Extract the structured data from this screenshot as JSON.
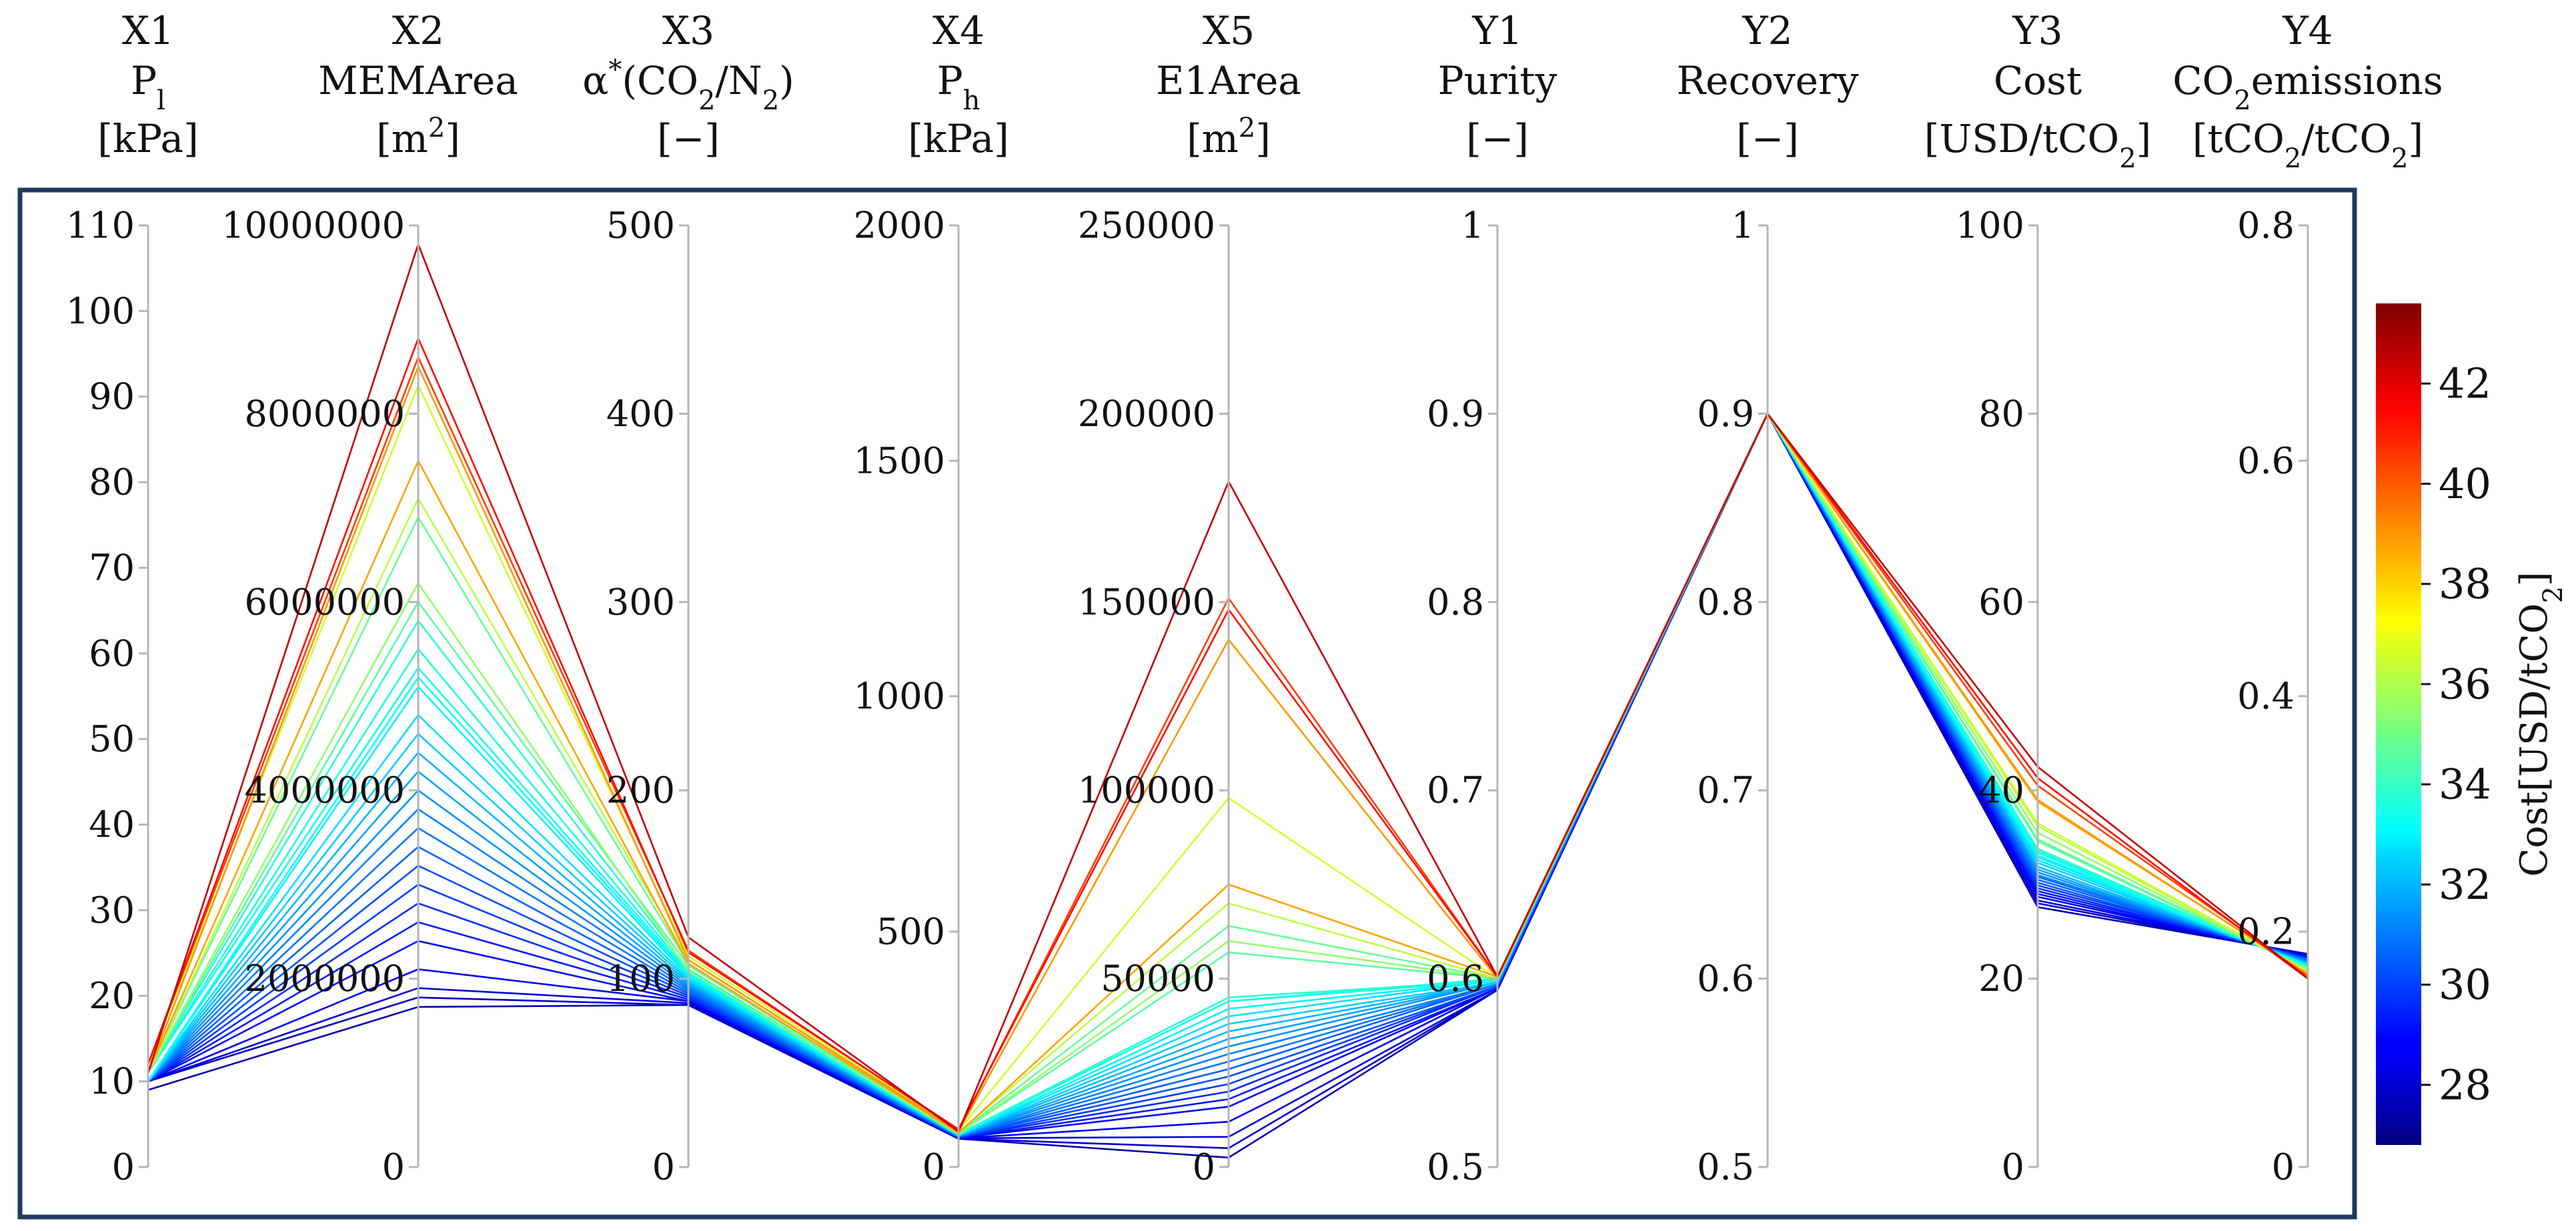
{
  "chart_data": {
    "type": "parallel_coordinates",
    "axes": [
      {
        "id": "X1",
        "name": "P_l",
        "unit": "[kPa]",
        "range": [
          0,
          110
        ],
        "ticks": [
          0,
          10,
          20,
          30,
          40,
          50,
          60,
          70,
          80,
          90,
          100,
          110
        ],
        "tick_labels": [
          "0",
          "10",
          "20",
          "30",
          "40",
          "50",
          "60",
          "70",
          "80",
          "90",
          "100",
          "110"
        ]
      },
      {
        "id": "X2",
        "name": "MEMArea",
        "unit": "[m2]",
        "range": [
          0,
          10000000
        ],
        "ticks": [
          0,
          2000000,
          4000000,
          6000000,
          8000000,
          10000000
        ],
        "tick_labels": [
          "0",
          "2000000",
          "4000000",
          "6000000",
          "8000000",
          "10000000"
        ]
      },
      {
        "id": "X3",
        "name": "α*(CO2/N2)",
        "unit": "[−]",
        "range": [
          0,
          500
        ],
        "ticks": [
          0,
          100,
          200,
          300,
          400,
          500
        ],
        "tick_labels": [
          "0",
          "100",
          "200",
          "300",
          "400",
          "500"
        ]
      },
      {
        "id": "X4",
        "name": "P_h",
        "unit": "[kPa]",
        "range": [
          0,
          2000
        ],
        "ticks": [
          0,
          500,
          1000,
          1500,
          2000
        ],
        "tick_labels": [
          "0",
          "500",
          "1000",
          "1500",
          "2000"
        ]
      },
      {
        "id": "X5",
        "name": "E1Area",
        "unit": "[m2]",
        "range": [
          0,
          250000
        ],
        "ticks": [
          0,
          50000,
          100000,
          150000,
          200000,
          250000
        ],
        "tick_labels": [
          "0",
          "50000",
          "100000",
          "150000",
          "200000",
          "250000"
        ]
      },
      {
        "id": "Y1",
        "name": "Purity",
        "unit": "[−]",
        "range": [
          0.5,
          1.0
        ],
        "ticks": [
          0.5,
          0.6,
          0.7,
          0.8,
          0.9,
          1.0
        ],
        "tick_labels": [
          "0.5",
          "0.6",
          "0.7",
          "0.8",
          "0.9",
          "1"
        ]
      },
      {
        "id": "Y2",
        "name": "Recovery",
        "unit": "[−]",
        "range": [
          0.5,
          1.0
        ],
        "ticks": [
          0.5,
          0.6,
          0.7,
          0.8,
          0.9,
          1.0
        ],
        "tick_labels": [
          "0.5",
          "0.6",
          "0.7",
          "0.8",
          "0.9",
          "1"
        ]
      },
      {
        "id": "Y3",
        "name": "Cost",
        "unit": "[USD/tCO2]",
        "range": [
          0,
          100
        ],
        "ticks": [
          0,
          20,
          40,
          60,
          80,
          100
        ],
        "tick_labels": [
          "0",
          "20",
          "40",
          "60",
          "80",
          "100"
        ]
      },
      {
        "id": "Y4",
        "name": "CO2emissions",
        "unit": "[tCO2/tCO2]",
        "range": [
          0,
          0.8
        ],
        "ticks": [
          0,
          0.2,
          0.4,
          0.6,
          0.8
        ],
        "tick_labels": [
          "0",
          "0.2",
          "0.4",
          "0.6",
          "0.8"
        ]
      }
    ],
    "colorbar": {
      "label": "Cost[USD/tCO2]",
      "colormap": "jet",
      "range": [
        26.8,
        43.6
      ],
      "ticks": [
        28,
        30,
        32,
        34,
        36,
        38,
        40,
        42
      ],
      "tick_labels": [
        "28",
        "30",
        "32",
        "34",
        "36",
        "38",
        "40",
        "42"
      ]
    },
    "series": [
      [
        11,
        9800000,
        122,
        75,
        182000,
        0.601,
        0.9,
        42.5,
        0.16
      ],
      [
        12,
        8600000,
        115,
        78,
        151000,
        0.601,
        0.9,
        40.5,
        0.162
      ],
      [
        12,
        8800000,
        114,
        80,
        148000,
        0.601,
        0.9,
        41.3,
        0.16
      ],
      [
        11,
        8500000,
        110,
        75,
        140000,
        0.6,
        0.9,
        39.0,
        0.163
      ],
      [
        11,
        7500000,
        108,
        72,
        75000,
        0.601,
        0.9,
        38.8,
        0.164
      ],
      [
        12,
        8300000,
        112,
        77,
        98000,
        0.6,
        0.9,
        36.5,
        0.166
      ],
      [
        11,
        7100000,
        110,
        74,
        70000,
        0.6,
        0.9,
        36.2,
        0.166
      ],
      [
        11,
        6900000,
        108,
        72,
        64000,
        0.6,
        0.9,
        34.8,
        0.168
      ],
      [
        11,
        6200000,
        104,
        70,
        60000,
        0.6,
        0.9,
        35.5,
        0.167
      ],
      [
        11,
        6000000,
        107,
        71,
        57000,
        0.6,
        0.9,
        34.6,
        0.168
      ],
      [
        11,
        5800000,
        105,
        70,
        45000,
        0.599,
        0.9,
        33.8,
        0.17
      ],
      [
        11,
        5500000,
        104,
        70,
        44000,
        0.599,
        0.9,
        33.6,
        0.17
      ],
      [
        11,
        5300000,
        103,
        69,
        44000,
        0.6,
        0.9,
        33.4,
        0.17
      ],
      [
        10,
        5200000,
        102,
        69,
        44000,
        0.599,
        0.9,
        33.1,
        0.171
      ],
      [
        10,
        5100000,
        101,
        68,
        42000,
        0.599,
        0.9,
        32.9,
        0.171
      ],
      [
        10,
        4800000,
        100,
        68,
        40000,
        0.599,
        0.9,
        32.6,
        0.172
      ],
      [
        10,
        4600000,
        99,
        67,
        38000,
        0.598,
        0.9,
        32.3,
        0.172
      ],
      [
        10,
        4400000,
        98,
        67,
        36000,
        0.598,
        0.9,
        31.9,
        0.173
      ],
      [
        10,
        4200000,
        97,
        66,
        34000,
        0.598,
        0.9,
        31.6,
        0.173
      ],
      [
        10,
        4000000,
        96,
        66,
        32000,
        0.598,
        0.9,
        31.3,
        0.174
      ],
      [
        10,
        3800000,
        95,
        65,
        30000,
        0.597,
        0.9,
        31.0,
        0.175
      ],
      [
        10,
        3600000,
        94,
        65,
        28000,
        0.597,
        0.9,
        30.8,
        0.175
      ],
      [
        10,
        3400000,
        93,
        64,
        26000,
        0.597,
        0.9,
        30.5,
        0.176
      ],
      [
        10,
        3200000,
        92,
        64,
        24000,
        0.596,
        0.9,
        30.2,
        0.176
      ],
      [
        10,
        3000000,
        91,
        63,
        22000,
        0.596,
        0.9,
        29.9,
        0.177
      ],
      [
        10,
        2800000,
        90,
        63,
        20000,
        0.596,
        0.9,
        29.6,
        0.177
      ],
      [
        10,
        2600000,
        89,
        62,
        18000,
        0.595,
        0.9,
        29.3,
        0.178
      ],
      [
        10,
        2400000,
        88,
        62,
        16000,
        0.595,
        0.9,
        29.0,
        0.178
      ],
      [
        10,
        2100000,
        88,
        61,
        12000,
        0.595,
        0.9,
        28.7,
        0.179
      ],
      [
        10,
        1900000,
        87,
        61,
        8000,
        0.594,
        0.9,
        28.3,
        0.18
      ],
      [
        10,
        1800000,
        86,
        60,
        5000,
        0.594,
        0.9,
        28.0,
        0.18
      ],
      [
        9,
        1700000,
        86,
        60,
        2500,
        0.594,
        0.9,
        27.6,
        0.181
      ]
    ]
  }
}
